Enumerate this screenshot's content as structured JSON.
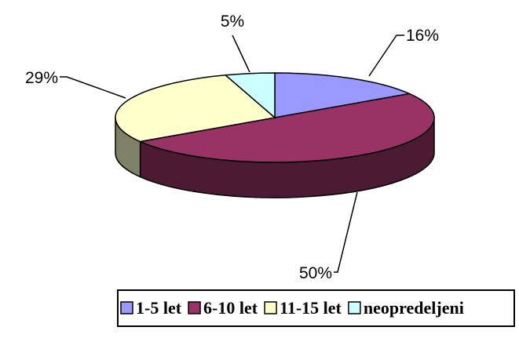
{
  "chart_data": {
    "type": "pie3d",
    "categories": [
      "1-5 let",
      "6-10 let",
      "11-15 let",
      "neopredeljeni"
    ],
    "values": [
      16,
      50,
      29,
      5
    ],
    "value_labels": [
      "16%",
      "50%",
      "29%",
      "5%"
    ],
    "colors": [
      "#9999ff",
      "#993366",
      "#ffffcc",
      "#ccffff"
    ],
    "legend": "bottom"
  }
}
